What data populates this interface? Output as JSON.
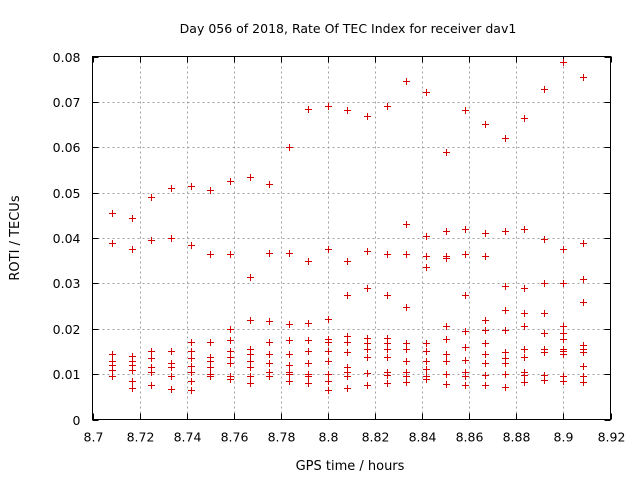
{
  "chart_data": {
    "type": "scatter",
    "title": "Day 056 of 2018, Rate Of TEC Index for receiver dav1",
    "xlabel": "GPS time / hours",
    "ylabel": "ROTI / TECUs",
    "xlim": [
      8.7,
      8.92
    ],
    "ylim": [
      0,
      0.08
    ],
    "x_ticks": [
      8.7,
      8.72,
      8.74,
      8.76,
      8.78,
      8.8,
      8.82,
      8.84,
      8.86,
      8.88,
      8.9,
      8.92
    ],
    "x_tick_labels": [
      "8.7",
      "8.72",
      "8.74",
      "8.76",
      "8.78",
      "8.8",
      "8.82",
      "8.84",
      "8.86",
      "8.88",
      "8.9",
      "8.92"
    ],
    "y_ticks": [
      0,
      0.01,
      0.02,
      0.03,
      0.04,
      0.05,
      0.06,
      0.07,
      0.08
    ],
    "y_tick_labels": [
      "0",
      "0.01",
      "0.02",
      "0.03",
      "0.04",
      "0.05",
      "0.06",
      "0.07",
      "0.08"
    ],
    "grid": true,
    "marker": "+",
    "color": "#d40000",
    "series": [
      {
        "name": "ROTI",
        "points": [
          [
            8.7083,
            0.0455
          ],
          [
            8.7083,
            0.039
          ],
          [
            8.7083,
            0.0145
          ],
          [
            8.7083,
            0.013
          ],
          [
            8.7083,
            0.012
          ],
          [
            8.7083,
            0.011
          ],
          [
            8.7083,
            0.0095
          ],
          [
            8.7167,
            0.0445
          ],
          [
            8.7167,
            0.0375
          ],
          [
            8.7167,
            0.014
          ],
          [
            8.7167,
            0.013
          ],
          [
            8.7167,
            0.012
          ],
          [
            8.7167,
            0.011
          ],
          [
            8.7167,
            0.0085
          ],
          [
            8.7167,
            0.007
          ],
          [
            8.725,
            0.049
          ],
          [
            8.725,
            0.0395
          ],
          [
            8.725,
            0.015
          ],
          [
            8.725,
            0.0135
          ],
          [
            8.725,
            0.0115
          ],
          [
            8.725,
            0.0105
          ],
          [
            8.725,
            0.0075
          ],
          [
            8.7333,
            0.051
          ],
          [
            8.7333,
            0.04
          ],
          [
            8.7333,
            0.015
          ],
          [
            8.7333,
            0.0125
          ],
          [
            8.7333,
            0.0115
          ],
          [
            8.7333,
            0.0095
          ],
          [
            8.7333,
            0.0068
          ],
          [
            8.7417,
            0.0515
          ],
          [
            8.7417,
            0.0385
          ],
          [
            8.7417,
            0.017
          ],
          [
            8.7417,
            0.015
          ],
          [
            8.7417,
            0.0135
          ],
          [
            8.7417,
            0.0118
          ],
          [
            8.7417,
            0.0105
          ],
          [
            8.7417,
            0.0085
          ],
          [
            8.7417,
            0.0065
          ],
          [
            8.75,
            0.0505
          ],
          [
            8.75,
            0.0365
          ],
          [
            8.75,
            0.017
          ],
          [
            8.75,
            0.0138
          ],
          [
            8.75,
            0.013
          ],
          [
            8.75,
            0.0115
          ],
          [
            8.75,
            0.01
          ],
          [
            8.75,
            0.0095
          ],
          [
            8.7583,
            0.0525
          ],
          [
            8.7583,
            0.0365
          ],
          [
            8.7583,
            0.02
          ],
          [
            8.7583,
            0.0175
          ],
          [
            8.7583,
            0.015
          ],
          [
            8.7583,
            0.0138
          ],
          [
            8.7583,
            0.0125
          ],
          [
            8.7583,
            0.0095
          ],
          [
            8.7583,
            0.009
          ],
          [
            8.7667,
            0.0535
          ],
          [
            8.7667,
            0.0315
          ],
          [
            8.7667,
            0.022
          ],
          [
            8.7667,
            0.0155
          ],
          [
            8.7667,
            0.0145
          ],
          [
            8.7667,
            0.013
          ],
          [
            8.7667,
            0.0115
          ],
          [
            8.7667,
            0.0095
          ],
          [
            8.7667,
            0.008
          ],
          [
            8.775,
            0.052
          ],
          [
            8.775,
            0.0368
          ],
          [
            8.775,
            0.0218
          ],
          [
            8.775,
            0.017
          ],
          [
            8.775,
            0.0145
          ],
          [
            8.775,
            0.0125
          ],
          [
            8.775,
            0.0105
          ],
          [
            8.775,
            0.0095
          ],
          [
            8.7833,
            0.06
          ],
          [
            8.7833,
            0.0368
          ],
          [
            8.7833,
            0.021
          ],
          [
            8.7833,
            0.0175
          ],
          [
            8.7833,
            0.0145
          ],
          [
            8.7833,
            0.012
          ],
          [
            8.7833,
            0.0105
          ],
          [
            8.7833,
            0.01
          ],
          [
            8.7833,
            0.0085
          ],
          [
            8.7917,
            0.0685
          ],
          [
            8.7917,
            0.035
          ],
          [
            8.7917,
            0.0212
          ],
          [
            8.7917,
            0.0175
          ],
          [
            8.7917,
            0.015
          ],
          [
            8.7917,
            0.0125
          ],
          [
            8.7917,
            0.01
          ],
          [
            8.7917,
            0.0095
          ],
          [
            8.7917,
            0.008
          ],
          [
            8.8,
            0.069
          ],
          [
            8.8,
            0.0375
          ],
          [
            8.8,
            0.0222
          ],
          [
            8.8,
            0.0178
          ],
          [
            8.8,
            0.017
          ],
          [
            8.8,
            0.015
          ],
          [
            8.8,
            0.013
          ],
          [
            8.8,
            0.01
          ],
          [
            8.8,
            0.0085
          ],
          [
            8.8,
            0.0065
          ],
          [
            8.8083,
            0.0683
          ],
          [
            8.8083,
            0.035
          ],
          [
            8.8083,
            0.0275
          ],
          [
            8.8083,
            0.0183
          ],
          [
            8.8083,
            0.017
          ],
          [
            8.8083,
            0.0148
          ],
          [
            8.8083,
            0.0115
          ],
          [
            8.8083,
            0.0105
          ],
          [
            8.8083,
            0.0095
          ],
          [
            8.8083,
            0.007
          ],
          [
            8.8167,
            0.0668
          ],
          [
            8.8167,
            0.0372
          ],
          [
            8.8167,
            0.029
          ],
          [
            8.8167,
            0.018
          ],
          [
            8.8167,
            0.0168
          ],
          [
            8.8167,
            0.0155
          ],
          [
            8.8167,
            0.0138
          ],
          [
            8.8167,
            0.0102
          ],
          [
            8.8167,
            0.0075
          ],
          [
            8.825,
            0.0692
          ],
          [
            8.825,
            0.0365
          ],
          [
            8.825,
            0.0275
          ],
          [
            8.825,
            0.018
          ],
          [
            8.825,
            0.0168
          ],
          [
            8.825,
            0.0155
          ],
          [
            8.825,
            0.0138
          ],
          [
            8.825,
            0.0105
          ],
          [
            8.825,
            0.0098
          ],
          [
            8.825,
            0.008
          ],
          [
            8.8333,
            0.0745
          ],
          [
            8.8333,
            0.043
          ],
          [
            8.8333,
            0.0365
          ],
          [
            8.8333,
            0.0248
          ],
          [
            8.8333,
            0.0168
          ],
          [
            8.8333,
            0.0155
          ],
          [
            8.8333,
            0.013
          ],
          [
            8.8333,
            0.0105
          ],
          [
            8.8333,
            0.0095
          ],
          [
            8.8333,
            0.0082
          ],
          [
            8.8417,
            0.0722
          ],
          [
            8.8417,
            0.0405
          ],
          [
            8.8417,
            0.036
          ],
          [
            8.8417,
            0.0335
          ],
          [
            8.8417,
            0.0168
          ],
          [
            8.8417,
            0.0152
          ],
          [
            8.8417,
            0.013
          ],
          [
            8.8417,
            0.0112
          ],
          [
            8.8417,
            0.0095
          ],
          [
            8.8417,
            0.009
          ],
          [
            8.85,
            0.059
          ],
          [
            8.85,
            0.0415
          ],
          [
            8.85,
            0.036
          ],
          [
            8.85,
            0.0355
          ],
          [
            8.85,
            0.0205
          ],
          [
            8.85,
            0.0178
          ],
          [
            8.85,
            0.0145
          ],
          [
            8.85,
            0.013
          ],
          [
            8.85,
            0.01
          ],
          [
            8.85,
            0.0078
          ],
          [
            8.8583,
            0.0683
          ],
          [
            8.8583,
            0.042
          ],
          [
            8.8583,
            0.0365
          ],
          [
            8.8583,
            0.0275
          ],
          [
            8.8583,
            0.0195
          ],
          [
            8.8583,
            0.016
          ],
          [
            8.8583,
            0.0132
          ],
          [
            8.8583,
            0.0105
          ],
          [
            8.8583,
            0.0095
          ],
          [
            8.8583,
            0.0075
          ],
          [
            8.8667,
            0.0652
          ],
          [
            8.8667,
            0.0412
          ],
          [
            8.8667,
            0.036
          ],
          [
            8.8667,
            0.022
          ],
          [
            8.8667,
            0.0198
          ],
          [
            8.8667,
            0.0168
          ],
          [
            8.8667,
            0.0145
          ],
          [
            8.8667,
            0.0125
          ],
          [
            8.8667,
            0.0098
          ],
          [
            8.8667,
            0.0075
          ],
          [
            8.875,
            0.062
          ],
          [
            8.875,
            0.0415
          ],
          [
            8.875,
            0.0295
          ],
          [
            8.875,
            0.0242
          ],
          [
            8.875,
            0.0198
          ],
          [
            8.875,
            0.0148
          ],
          [
            8.875,
            0.0135
          ],
          [
            8.875,
            0.0125
          ],
          [
            8.875,
            0.01
          ],
          [
            8.875,
            0.0072
          ],
          [
            8.8833,
            0.0665
          ],
          [
            8.8833,
            0.042
          ],
          [
            8.8833,
            0.029
          ],
          [
            8.8833,
            0.0235
          ],
          [
            8.8833,
            0.0205
          ],
          [
            8.8833,
            0.0155
          ],
          [
            8.8833,
            0.0138
          ],
          [
            8.8833,
            0.0105
          ],
          [
            8.8833,
            0.0098
          ],
          [
            8.8833,
            0.0082
          ],
          [
            8.8917,
            0.0728
          ],
          [
            8.8917,
            0.0398
          ],
          [
            8.8917,
            0.03
          ],
          [
            8.8917,
            0.0235
          ],
          [
            8.8917,
            0.019
          ],
          [
            8.8917,
            0.0155
          ],
          [
            8.8917,
            0.0148
          ],
          [
            8.8917,
            0.0098
          ],
          [
            8.8917,
            0.0088
          ],
          [
            8.9,
            0.0788
          ],
          [
            8.9,
            0.0375
          ],
          [
            8.9,
            0.03
          ],
          [
            8.9,
            0.0205
          ],
          [
            8.9,
            0.019
          ],
          [
            8.9,
            0.0178
          ],
          [
            8.9,
            0.0155
          ],
          [
            8.9,
            0.015
          ],
          [
            8.9,
            0.0145
          ],
          [
            8.9,
            0.0095
          ],
          [
            8.9,
            0.0085
          ],
          [
            8.9083,
            0.0755
          ],
          [
            8.9083,
            0.039
          ],
          [
            8.9083,
            0.031
          ],
          [
            8.9083,
            0.026
          ],
          [
            8.9083,
            0.0165
          ],
          [
            8.9083,
            0.0155
          ],
          [
            8.9083,
            0.0148
          ],
          [
            8.9083,
            0.0118
          ],
          [
            8.9083,
            0.0095
          ],
          [
            8.9083,
            0.0082
          ]
        ]
      }
    ]
  }
}
